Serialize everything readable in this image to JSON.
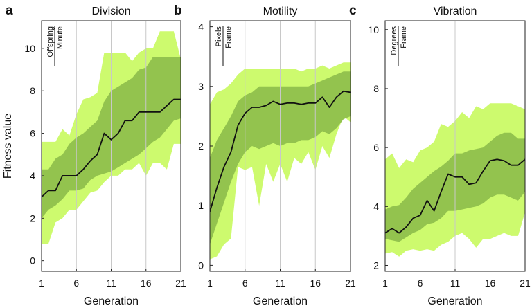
{
  "colors": {
    "outer_band": "#cdfa6e",
    "inner_band": "#93c34e",
    "median_line": "#111111",
    "gridline": "#c8c8c8"
  },
  "chart_data": [
    {
      "type": "area",
      "panel_label": "a",
      "title": "Division",
      "ylabel": "Fitness value",
      "xlabel": "Generation",
      "unit_numerator": "Offspring",
      "unit_denominator": "Minute",
      "xlim": [
        1,
        21
      ],
      "ylim": [
        -0.5,
        11.3
      ],
      "x_ticks": [
        1,
        6,
        11,
        16,
        21
      ],
      "y_ticks": [
        0,
        2,
        4,
        6,
        8,
        10
      ],
      "grid_x": [
        6,
        11,
        16
      ],
      "x": [
        1,
        2,
        3,
        4,
        5,
        6,
        7,
        8,
        9,
        10,
        11,
        12,
        13,
        14,
        15,
        16,
        17,
        18,
        19,
        20,
        21
      ],
      "median": [
        3.0,
        3.3,
        3.3,
        4.0,
        4.0,
        4.0,
        4.3,
        4.7,
        5.0,
        6.0,
        5.7,
        6.0,
        6.6,
        6.6,
        7.0,
        7.0,
        7.0,
        7.0,
        7.3,
        7.6,
        7.6
      ],
      "inner_lower": [
        2.0,
        2.4,
        2.6,
        2.9,
        3.3,
        3.3,
        3.4,
        3.8,
        4.0,
        4.1,
        4.2,
        4.4,
        4.6,
        4.8,
        5.0,
        5.3,
        5.6,
        5.8,
        6.2,
        6.6,
        6.7
      ],
      "inner_upper": [
        4.3,
        4.3,
        4.8,
        5.0,
        5.5,
        5.8,
        6.0,
        6.3,
        6.6,
        7.5,
        8.0,
        8.2,
        8.4,
        8.6,
        9.0,
        9.1,
        9.6,
        9.6,
        9.6,
        9.6,
        9.6
      ],
      "outer_lower": [
        0.8,
        0.8,
        1.8,
        2.0,
        2.4,
        2.4,
        2.8,
        3.2,
        3.3,
        3.7,
        4.0,
        4.0,
        4.3,
        4.3,
        4.6,
        4.0,
        4.6,
        4.6,
        4.3,
        5.5,
        5.5
      ],
      "outer_upper": [
        5.6,
        5.6,
        5.6,
        6.2,
        5.9,
        6.9,
        7.6,
        7.7,
        7.9,
        9.8,
        9.8,
        9.8,
        9.8,
        9.4,
        9.8,
        10.0,
        10.0,
        10.8,
        10.8,
        10.8,
        9.5
      ]
    },
    {
      "type": "area",
      "panel_label": "b",
      "title": "Motility",
      "ylabel": "",
      "xlabel": "Generation",
      "unit_numerator": "Pixels",
      "unit_denominator": "Frame",
      "xlim": [
        1,
        21
      ],
      "ylim": [
        -0.1,
        4.1
      ],
      "x_ticks": [
        1,
        6,
        11,
        16,
        21
      ],
      "y_ticks": [
        0,
        1,
        2,
        3,
        4
      ],
      "grid_x": [
        6,
        11,
        16
      ],
      "x": [
        1,
        2,
        3,
        4,
        5,
        6,
        7,
        8,
        9,
        10,
        11,
        12,
        13,
        14,
        15,
        16,
        17,
        18,
        19,
        20,
        21
      ],
      "median": [
        0.9,
        1.3,
        1.65,
        1.9,
        2.35,
        2.55,
        2.65,
        2.65,
        2.68,
        2.75,
        2.7,
        2.72,
        2.72,
        2.7,
        2.72,
        2.72,
        2.82,
        2.65,
        2.82,
        2.92,
        2.9
      ],
      "inner_lower": [
        0.35,
        0.7,
        1.05,
        1.4,
        1.7,
        1.9,
        2.0,
        1.95,
        2.0,
        2.05,
        2.0,
        2.05,
        2.05,
        2.1,
        2.1,
        2.15,
        2.25,
        2.2,
        2.3,
        2.45,
        2.5
      ],
      "inner_upper": [
        1.8,
        2.1,
        2.3,
        2.5,
        2.75,
        2.85,
        2.9,
        3.0,
        3.0,
        3.0,
        3.0,
        3.0,
        3.0,
        3.0,
        3.0,
        3.05,
        3.1,
        3.15,
        3.2,
        3.25,
        3.25
      ],
      "outer_lower": [
        0.1,
        0.15,
        0.35,
        0.45,
        1.65,
        1.6,
        1.65,
        1.0,
        1.7,
        1.4,
        1.7,
        1.4,
        1.8,
        1.7,
        1.9,
        1.6,
        2.0,
        1.8,
        2.2,
        2.5,
        2.4
      ],
      "outer_upper": [
        2.7,
        2.9,
        2.95,
        3.05,
        3.2,
        3.3,
        3.3,
        3.3,
        3.3,
        3.3,
        3.3,
        3.3,
        3.3,
        3.25,
        3.3,
        3.3,
        3.35,
        3.3,
        3.35,
        3.4,
        3.4
      ]
    },
    {
      "type": "area",
      "panel_label": "c",
      "title": "Vibration",
      "ylabel": "",
      "xlabel": "Generation",
      "unit_numerator": "Degrees",
      "unit_denominator": "Frame",
      "xlim": [
        1,
        21
      ],
      "ylim": [
        1.8,
        10.3
      ],
      "x_ticks": [
        1,
        6,
        11,
        16,
        21
      ],
      "y_ticks": [
        2,
        4,
        6,
        8,
        10
      ],
      "grid_x": [
        6,
        11,
        16
      ],
      "x": [
        1,
        2,
        3,
        4,
        5,
        6,
        7,
        8,
        9,
        10,
        11,
        12,
        13,
        14,
        15,
        16,
        17,
        18,
        19,
        20,
        21
      ],
      "median": [
        3.1,
        3.25,
        3.1,
        3.3,
        3.6,
        3.7,
        4.2,
        3.85,
        4.5,
        5.1,
        5.0,
        5.0,
        4.75,
        4.8,
        5.2,
        5.55,
        5.6,
        5.55,
        5.4,
        5.4,
        5.6
      ],
      "inner_lower": [
        2.9,
        2.85,
        2.8,
        2.95,
        3.1,
        3.2,
        3.4,
        3.45,
        3.6,
        3.85,
        3.85,
        3.9,
        3.95,
        4.0,
        4.1,
        4.3,
        4.4,
        4.4,
        4.3,
        4.2,
        4.5
      ],
      "inner_upper": [
        3.9,
        4.0,
        4.05,
        4.3,
        4.6,
        4.8,
        5.0,
        5.2,
        5.35,
        5.55,
        5.8,
        5.8,
        5.9,
        5.95,
        6.0,
        6.2,
        6.4,
        6.5,
        6.5,
        6.3,
        6.3
      ],
      "outer_lower": [
        2.4,
        2.45,
        2.3,
        2.5,
        2.55,
        2.5,
        2.55,
        2.5,
        2.7,
        2.8,
        3.0,
        3.1,
        2.9,
        2.6,
        2.9,
        2.9,
        3.0,
        3.1,
        3.0,
        3.0,
        3.8
      ],
      "outer_upper": [
        5.6,
        5.8,
        5.3,
        5.6,
        5.5,
        5.9,
        6.0,
        6.2,
        6.8,
        6.7,
        6.9,
        7.2,
        7.0,
        7.4,
        7.3,
        7.5,
        7.5,
        7.5,
        7.5,
        7.4,
        7.3
      ]
    }
  ]
}
